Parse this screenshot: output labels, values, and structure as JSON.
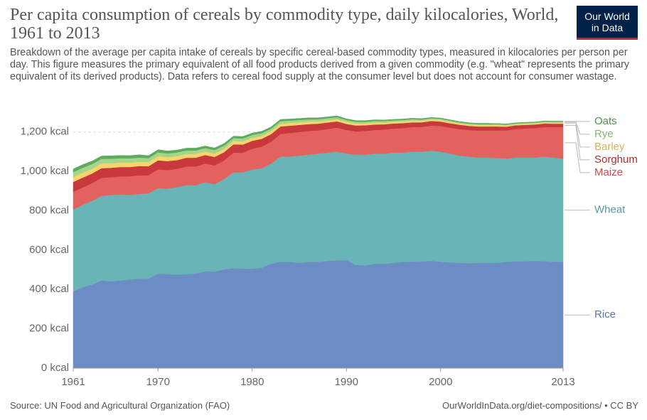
{
  "chart_data": {
    "type": "stacked-area",
    "title": "Per capita consumption of cereals by commodity type, daily kilocalories, World, 1961 to 2013",
    "subtitle": "Breakdown of the average per capita intake of cereals by specific cereal-based commodity types, measured in kilocalories per person per day. This figure measures the primary equivalent of all food products derived from a given commodity (e.g. \"wheat\" represents the primary equivalent of its derived products). Data refers to cereal food supply at the consumer level but does not account for consumer wastage.",
    "logo": [
      "Our World",
      "in Data"
    ],
    "source": "Source: UN Food and Agricultural Organization (FAO)",
    "url": "OurWorldInData.org/diet-compositions/ • CC BY",
    "x": [
      1961,
      1962,
      1963,
      1964,
      1965,
      1966,
      1967,
      1968,
      1969,
      1970,
      1971,
      1972,
      1973,
      1974,
      1975,
      1976,
      1977,
      1978,
      1979,
      1980,
      1981,
      1982,
      1983,
      1984,
      1985,
      1986,
      1987,
      1988,
      1989,
      1990,
      1991,
      1992,
      1993,
      1994,
      1995,
      1996,
      1997,
      1998,
      1999,
      2000,
      2001,
      2002,
      2003,
      2004,
      2005,
      2006,
      2007,
      2008,
      2009,
      2010,
      2011,
      2012,
      2013
    ],
    "xlim": [
      1961,
      2013
    ],
    "xticks": [
      1961,
      1970,
      1980,
      1990,
      2000,
      2013
    ],
    "ylim": [
      0,
      1300
    ],
    "yticks": [
      {
        "value": 0,
        "label": "0 kcal"
      },
      {
        "value": 200,
        "label": "200 kcal"
      },
      {
        "value": 400,
        "label": "400 kcal"
      },
      {
        "value": 600,
        "label": "600 kcal"
      },
      {
        "value": 800,
        "label": "800 kcal"
      },
      {
        "value": 1000,
        "label": "1,000 kcal"
      },
      {
        "value": 1200,
        "label": "1,200 kcal"
      }
    ],
    "grid": true,
    "series": [
      {
        "name": "Rice",
        "color": "#6d8bc4",
        "values": [
          390,
          410,
          425,
          445,
          440,
          445,
          450,
          455,
          455,
          480,
          478,
          475,
          478,
          480,
          492,
          490,
          502,
          508,
          505,
          505,
          510,
          530,
          540,
          540,
          535,
          540,
          540,
          545,
          548,
          548,
          525,
          522,
          530,
          530,
          535,
          540,
          540,
          542,
          545,
          540,
          537,
          535,
          533,
          535,
          535,
          535,
          540,
          543,
          543,
          545,
          543,
          540,
          540
        ]
      },
      {
        "name": "Wheat",
        "color": "#69b4b6",
        "values": [
          416,
          420,
          425,
          430,
          440,
          437,
          430,
          430,
          433,
          435,
          434,
          445,
          452,
          450,
          453,
          445,
          458,
          487,
          490,
          505,
          505,
          510,
          535,
          535,
          545,
          545,
          550,
          550,
          552,
          542,
          560,
          563,
          560,
          560,
          560,
          555,
          560,
          558,
          560,
          560,
          553,
          545,
          542,
          535,
          535,
          533,
          525,
          527,
          527,
          525,
          532,
          530,
          525
        ]
      },
      {
        "name": "Maize",
        "color": "#e4625e",
        "values": [
          90,
          88,
          90,
          92,
          90,
          92,
          95,
          95,
          92,
          95,
          95,
          92,
          95,
          95,
          95,
          95,
          95,
          100,
          100,
          105,
          110,
          110,
          115,
          120,
          120,
          120,
          118,
          120,
          122,
          120,
          118,
          120,
          120,
          122,
          122,
          125,
          125,
          125,
          128,
          130,
          132,
          135,
          135,
          137,
          138,
          140,
          143,
          145,
          148,
          150,
          150,
          155,
          160
        ]
      },
      {
        "name": "Sorghum",
        "color": "#c8383d",
        "values": [
          50,
          50,
          49,
          49,
          48,
          48,
          47,
          47,
          46,
          46,
          45,
          45,
          44,
          44,
          43,
          43,
          42,
          42,
          41,
          40,
          40,
          39,
          38,
          37,
          36,
          35,
          34,
          33,
          32,
          31,
          30,
          29,
          28,
          27,
          26,
          25,
          24,
          24,
          23,
          23,
          22,
          22,
          21,
          21,
          20,
          20,
          19,
          19,
          18,
          18,
          18,
          17,
          17
        ]
      },
      {
        "name": "Barley",
        "color": "#f7d56b",
        "values": [
          25,
          25,
          24,
          24,
          23,
          23,
          22,
          22,
          21,
          21,
          20,
          20,
          19,
          19,
          18,
          18,
          17,
          17,
          16,
          16,
          15,
          15,
          14,
          14,
          13,
          13,
          12,
          12,
          11,
          11,
          10,
          10,
          10,
          9,
          9,
          9,
          9,
          8,
          8,
          8,
          8,
          7,
          7,
          7,
          7,
          7,
          6,
          6,
          6,
          6,
          6,
          6,
          6
        ]
      },
      {
        "name": "Rye",
        "color": "#a5d58d",
        "values": [
          25,
          25,
          24,
          23,
          23,
          22,
          22,
          21,
          20,
          20,
          19,
          19,
          18,
          18,
          17,
          17,
          16,
          15,
          15,
          14,
          14,
          13,
          13,
          12,
          12,
          11,
          11,
          10,
          10,
          9,
          9,
          8,
          8,
          8,
          7,
          7,
          7,
          6,
          6,
          6,
          6,
          5,
          5,
          5,
          5,
          5,
          5,
          4,
          4,
          4,
          4,
          4,
          4
        ]
      },
      {
        "name": "Oats",
        "color": "#5cab5e",
        "values": [
          16,
          16,
          15,
          15,
          15,
          14,
          14,
          14,
          13,
          13,
          13,
          12,
          12,
          12,
          11,
          11,
          11,
          10,
          10,
          10,
          9,
          9,
          9,
          8,
          8,
          8,
          7,
          7,
          7,
          6,
          6,
          6,
          6,
          5,
          5,
          5,
          5,
          5,
          4,
          4,
          4,
          4,
          4,
          4,
          4,
          3,
          3,
          3,
          3,
          3,
          3,
          3,
          3
        ]
      }
    ]
  }
}
